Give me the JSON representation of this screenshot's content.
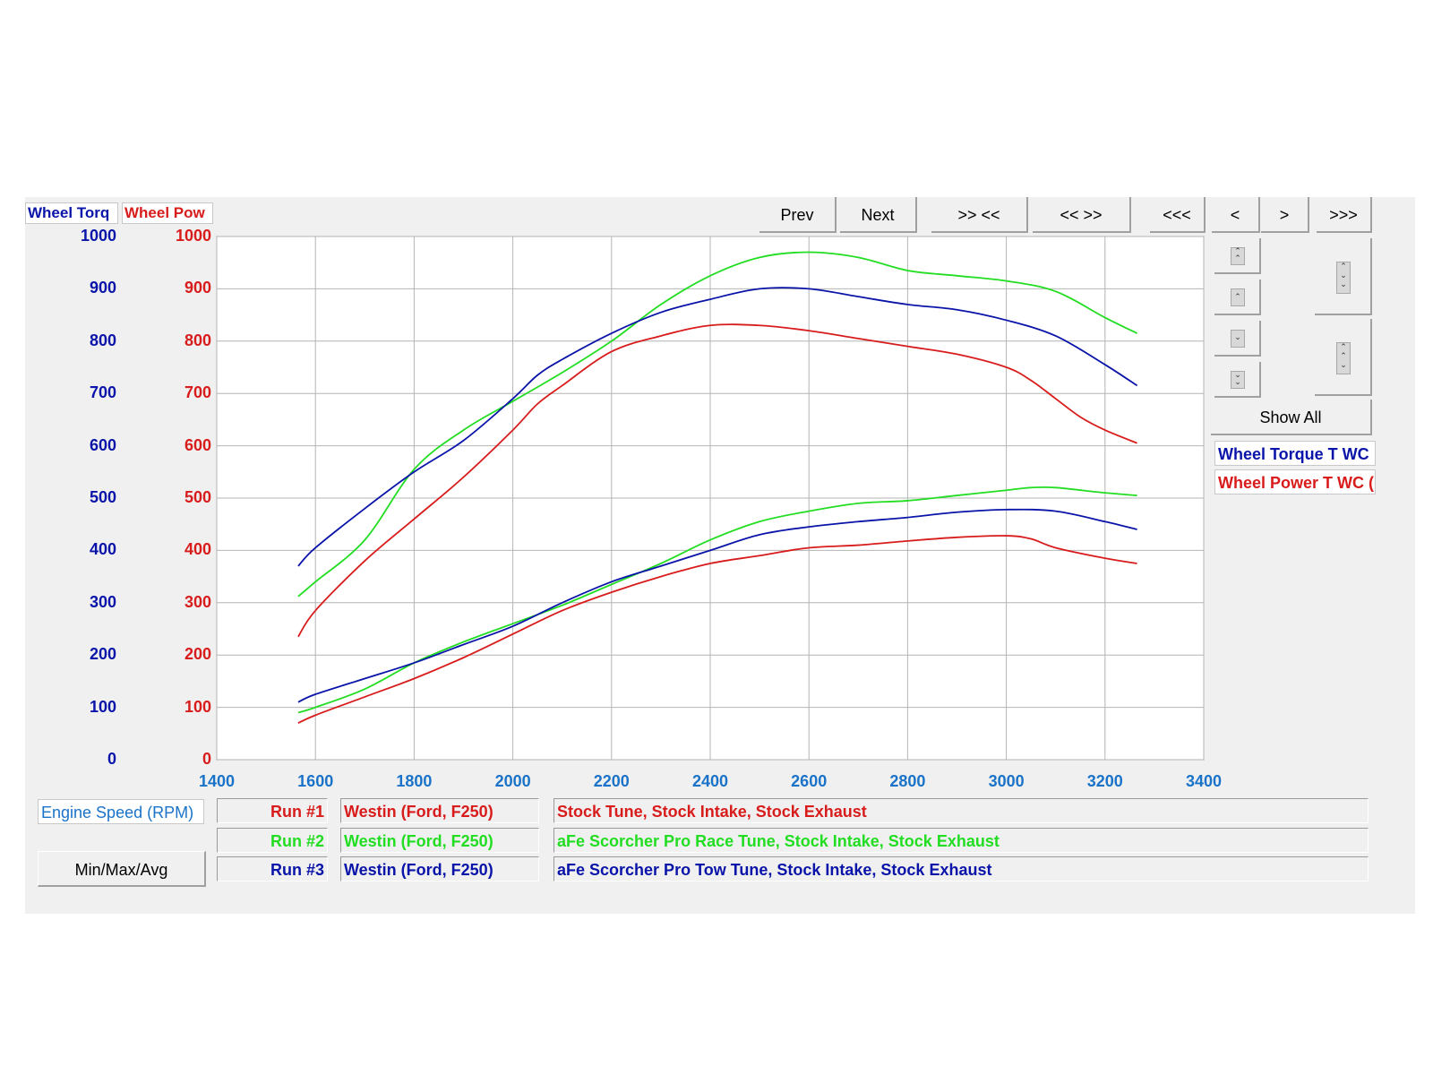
{
  "axis_titles": {
    "left1": "Wheel Torq",
    "left2": "Wheel Pow",
    "x": "Engine Speed (RPM)"
  },
  "colors": {
    "blue": "#0a14a8",
    "red": "#d81c1c",
    "green": "#22dd22",
    "xtick": "#1a73c8"
  },
  "toolbar": {
    "prev": "Prev",
    "next": "Next",
    "zoom_in": ">> <<",
    "zoom_out": "<< >>",
    "first": "<<<",
    "back": "<",
    "forward": ">",
    "last": ">>>"
  },
  "side": {
    "show_all": "Show All",
    "legend_torque": "Wheel Torque T WC",
    "legend_power": "Wheel Power T WC ("
  },
  "min_max_avg": "Min/Max/Avg",
  "runs": [
    {
      "label": "Run #1",
      "vehicle": "Westin (Ford, F250)",
      "description": "Stock Tune, Stock Intake, Stock Exhaust",
      "color": "#d81c1c"
    },
    {
      "label": "Run #2",
      "vehicle": "Westin (Ford, F250)",
      "description": "aFe Scorcher Pro Race Tune, Stock Intake, Stock Exhaust",
      "color": "#22dd22"
    },
    {
      "label": "Run #3",
      "vehicle": "Westin (Ford, F250)",
      "description": "aFe Scorcher Pro Tow Tune, Stock Intake, Stock Exhaust",
      "color": "#0a14a8"
    }
  ],
  "chart_data": {
    "type": "line",
    "xlabel": "Engine Speed (RPM)",
    "xlim": [
      1400,
      3400
    ],
    "ylim": [
      0,
      1000
    ],
    "x_ticks": [
      "1400",
      "1600",
      "1800",
      "2000",
      "2200",
      "2400",
      "2600",
      "2800",
      "3000",
      "3200",
      "3400"
    ],
    "y_ticks": [
      "0",
      "100",
      "200",
      "300",
      "400",
      "500",
      "600",
      "700",
      "800",
      "900",
      "1000"
    ],
    "grid": true,
    "series": [
      {
        "name": "Wheel Torque T WC",
        "run": "Run #1",
        "color": "#d81c1c",
        "x": [
          1565,
          1600,
          1700,
          1800,
          1900,
          2000,
          2050,
          2100,
          2200,
          2300,
          2400,
          2500,
          2600,
          2700,
          2800,
          2900,
          3000,
          3050,
          3100,
          3150,
          3200,
          3265
        ],
        "y": [
          235,
          285,
          380,
          460,
          540,
          630,
          680,
          715,
          780,
          810,
          830,
          830,
          820,
          805,
          790,
          775,
          750,
          725,
          690,
          655,
          630,
          605
        ]
      },
      {
        "name": "Wheel Torque T WC",
        "run": "Run #2",
        "color": "#22dd22",
        "x": [
          1565,
          1600,
          1700,
          1800,
          1900,
          2000,
          2100,
          2200,
          2300,
          2400,
          2500,
          2600,
          2700,
          2800,
          2900,
          3000,
          3100,
          3200,
          3265
        ],
        "y": [
          312,
          340,
          420,
          555,
          630,
          685,
          740,
          800,
          870,
          925,
          960,
          970,
          960,
          935,
          925,
          915,
          895,
          845,
          815
        ]
      },
      {
        "name": "Wheel Torque T WC",
        "run": "Run #3",
        "color": "#0a14a8",
        "x": [
          1565,
          1600,
          1700,
          1800,
          1900,
          2000,
          2050,
          2100,
          2200,
          2300,
          2400,
          2500,
          2600,
          2700,
          2800,
          2900,
          3000,
          3100,
          3200,
          3265
        ],
        "y": [
          370,
          405,
          480,
          550,
          610,
          690,
          735,
          765,
          815,
          855,
          880,
          900,
          900,
          885,
          870,
          860,
          840,
          810,
          755,
          715
        ]
      },
      {
        "name": "Wheel Power T WC",
        "run": "Run #1",
        "color": "#d81c1c",
        "x": [
          1565,
          1600,
          1700,
          1800,
          1900,
          2000,
          2100,
          2200,
          2300,
          2400,
          2500,
          2600,
          2700,
          2800,
          2900,
          3000,
          3050,
          3100,
          3200,
          3265
        ],
        "y": [
          70,
          85,
          120,
          155,
          195,
          240,
          285,
          320,
          350,
          375,
          390,
          405,
          410,
          418,
          425,
          428,
          422,
          405,
          385,
          375
        ]
      },
      {
        "name": "Wheel Power T WC",
        "run": "Run #2",
        "color": "#22dd22",
        "x": [
          1565,
          1600,
          1700,
          1800,
          1900,
          2000,
          2100,
          2200,
          2300,
          2400,
          2500,
          2600,
          2700,
          2800,
          2900,
          3000,
          3050,
          3100,
          3200,
          3265
        ],
        "y": [
          90,
          100,
          135,
          185,
          225,
          260,
          295,
          335,
          375,
          420,
          455,
          475,
          490,
          495,
          505,
          515,
          520,
          520,
          510,
          505
        ]
      },
      {
        "name": "Wheel Power T WC",
        "run": "Run #3",
        "color": "#0a14a8",
        "x": [
          1565,
          1600,
          1700,
          1800,
          1900,
          2000,
          2100,
          2200,
          2300,
          2400,
          2500,
          2600,
          2700,
          2800,
          2900,
          3000,
          3100,
          3200,
          3265
        ],
        "y": [
          110,
          125,
          155,
          185,
          220,
          255,
          300,
          340,
          370,
          400,
          430,
          445,
          455,
          463,
          473,
          478,
          475,
          455,
          440
        ]
      }
    ]
  }
}
